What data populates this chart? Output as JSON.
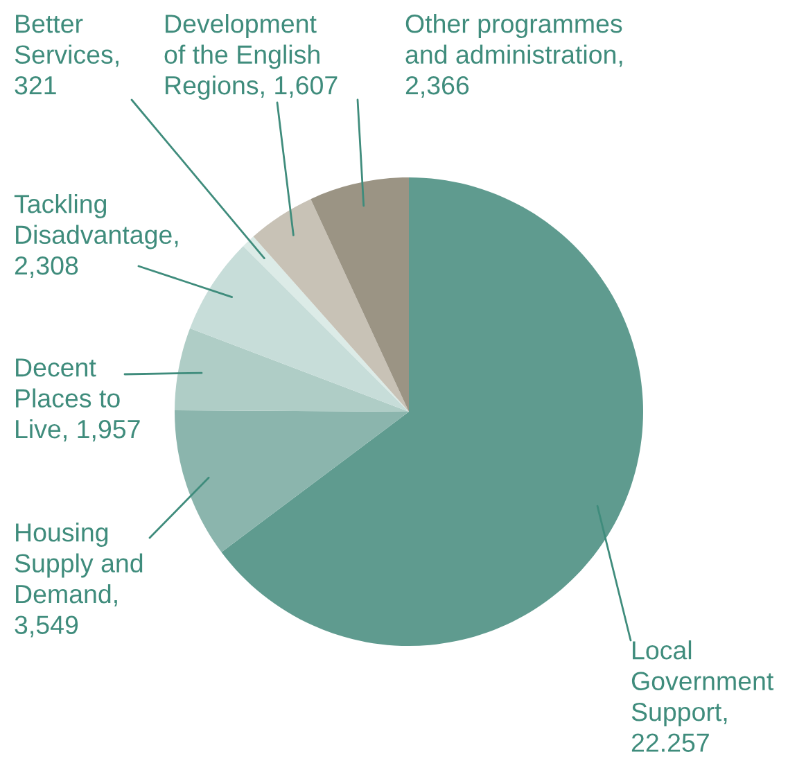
{
  "chart_data": {
    "type": "pie",
    "categories": [
      "Local\nGovernment\nSupport,\n22.257",
      "Housing\nSupply and\nDemand,\n3,549",
      "Decent\nPlaces to\nLive, 1,957",
      "Tackling\nDisadvantage,\n2,308",
      "Better\nServices,\n321",
      "Development\nof the English\nRegions, 1,607",
      "Other programmes\nand administration,\n2,366"
    ],
    "values": [
      22257,
      3549,
      1957,
      2308,
      321,
      1607,
      2366
    ],
    "colors": [
      "#5f9b8f",
      "#8bb5ad",
      "#afcdc6",
      "#c7ddd9",
      "#dcebe7",
      "#c8c2b6",
      "#9b9484"
    ],
    "legend": false
  }
}
